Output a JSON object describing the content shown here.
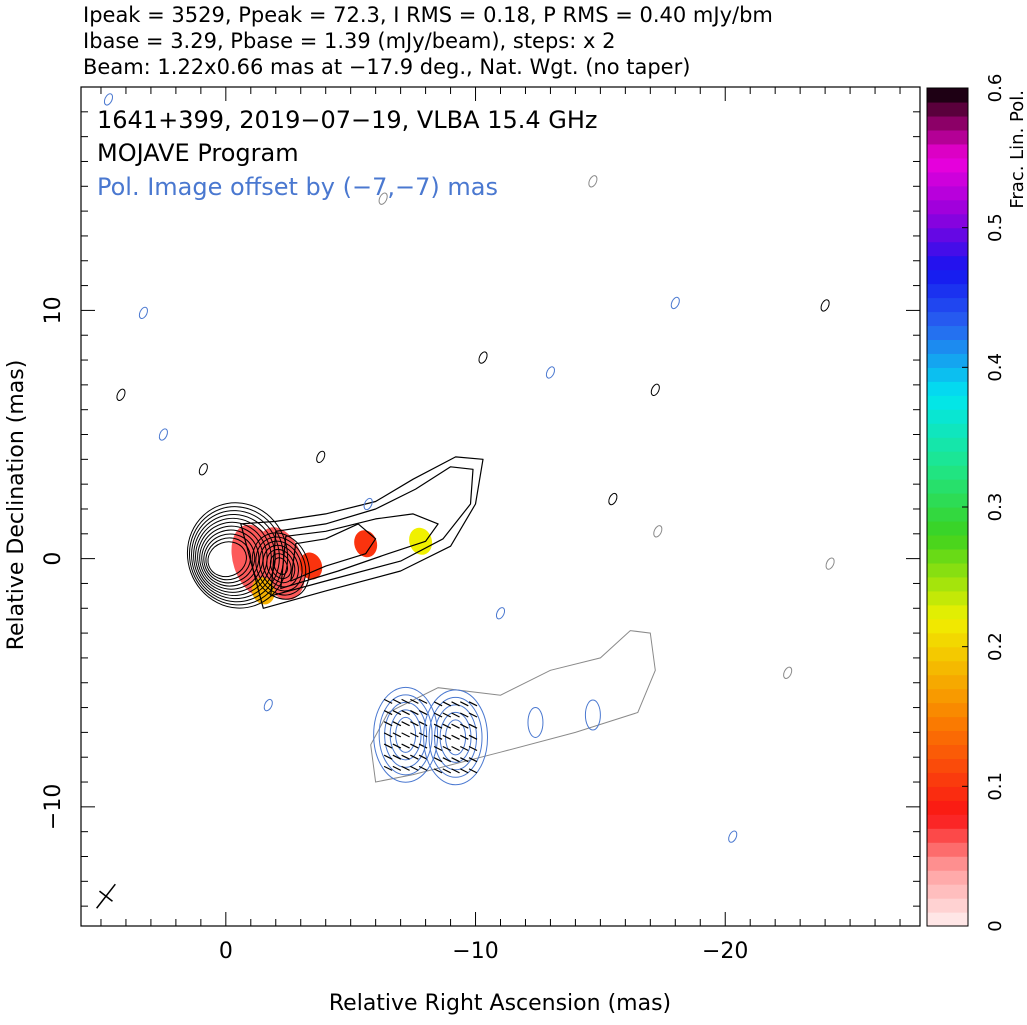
{
  "header": {
    "line1": "Ipeak = 3529, Ppeak = 72.3, I RMS = 0.18, P RMS = 0.40 mJy/bm",
    "line2": "Ibase = 3.29, Pbase = 1.39 (mJy/beam), steps: x 2",
    "line3": "Beam: 1.22x0.66 mas at −17.9 deg., Nat. Wgt. (no taper)"
  },
  "annotations": {
    "source": "1641+399, 2019−07−19, VLBA 15.4 GHz",
    "program": "MOJAVE Program",
    "offset_note": "Pol. Image offset by (−7,−7) mas"
  },
  "colors": {
    "total_intensity_contours": "#000000",
    "polarization_contours": "#4a78d0",
    "offset_image_contours": "#8a8a8a",
    "annotation_blue": "#4a78d0"
  },
  "chart_data": {
    "type": "heatmap",
    "xlabel": "Relative Right Ascension (mas)",
    "ylabel": "Relative Declination (mas)",
    "xlim": [
      5.8,
      -27.8
    ],
    "ylim": [
      -14.8,
      19.0
    ],
    "x_ticks": [
      {
        "value": 0,
        "label": "0"
      },
      {
        "value": -10,
        "label": "−10"
      },
      {
        "value": -20,
        "label": "−20"
      }
    ],
    "y_ticks": [
      {
        "value": 10,
        "label": "10"
      },
      {
        "value": 0,
        "label": "0"
      },
      {
        "value": -10,
        "label": "−10"
      }
    ],
    "colorbar": {
      "label": "Frac. Lin. Pol.",
      "range": [
        0,
        0.6
      ],
      "ticks": [
        {
          "value": 0,
          "label": "0"
        },
        {
          "value": 0.1,
          "label": "0.1"
        },
        {
          "value": 0.2,
          "label": "0.2"
        },
        {
          "value": 0.3,
          "label": "0.3"
        },
        {
          "value": 0.4,
          "label": "0.4"
        },
        {
          "value": 0.5,
          "label": "0.5"
        },
        {
          "value": 0.6,
          "label": "0.6"
        }
      ]
    },
    "core": {
      "x": 0,
      "y": 0
    },
    "polarization_regions": [
      {
        "x": -1.2,
        "y": -0.1,
        "frac_pol": 0.06
      },
      {
        "x": -2.2,
        "y": -0.2,
        "frac_pol": 0.06
      },
      {
        "x": -1.5,
        "y": -1.3,
        "frac_pol": 0.18
      },
      {
        "x": -3.4,
        "y": -0.3,
        "frac_pol": 0.1
      },
      {
        "x": -5.6,
        "y": 0.6,
        "frac_pol": 0.1
      },
      {
        "x": -7.8,
        "y": 0.7,
        "frac_pol": 0.22
      }
    ],
    "beam": {
      "major_mas": 1.22,
      "minor_mas": 0.66,
      "pa_deg": -17.9
    },
    "offset_mas": [
      -7,
      -7
    ],
    "grid": false
  }
}
